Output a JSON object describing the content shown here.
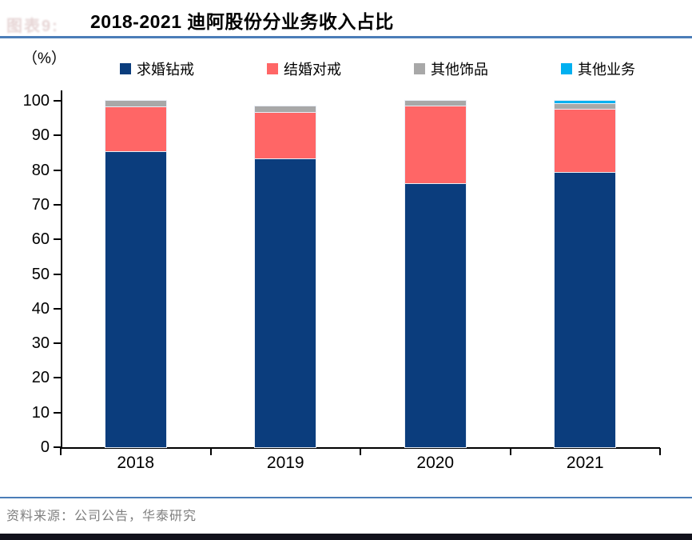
{
  "header": {
    "figure_label": "图表9:",
    "title": "2018-2021 迪阿股份分业务收入占比"
  },
  "footer": {
    "source": "资料来源：公司公告，华泰研究"
  },
  "theme": {
    "rule_blue": "#4b7db8",
    "axis_black": "#000000",
    "source_gray": "#7f7f7f",
    "bottom_band": "#12121c"
  },
  "chart_data": {
    "type": "bar",
    "stacked": true,
    "title": "2018-2021 迪阿股份分业务收入占比",
    "unit_label": "（%）",
    "categories": [
      "2018",
      "2019",
      "2020",
      "2021"
    ],
    "series": [
      {
        "name": "求婚钻戒",
        "color": "#0b3d7d",
        "values": [
          85.5,
          83.3,
          76.2,
          79.4
        ]
      },
      {
        "name": "结婚对戒",
        "color": "#ff6666",
        "values": [
          12.8,
          13.5,
          22.4,
          18.2
        ]
      },
      {
        "name": "其他饰品",
        "color": "#a8a8a8",
        "values": [
          1.7,
          1.5,
          1.3,
          1.6
        ]
      },
      {
        "name": "其他业务",
        "color": "#00b0f0",
        "values": [
          0.0,
          0.0,
          0.0,
          0.8
        ]
      }
    ],
    "ylim": [
      0,
      100
    ],
    "ytick_step": 10,
    "xlabel": "",
    "ylabel": "（%）",
    "legend_position": "top",
    "grid": false
  }
}
